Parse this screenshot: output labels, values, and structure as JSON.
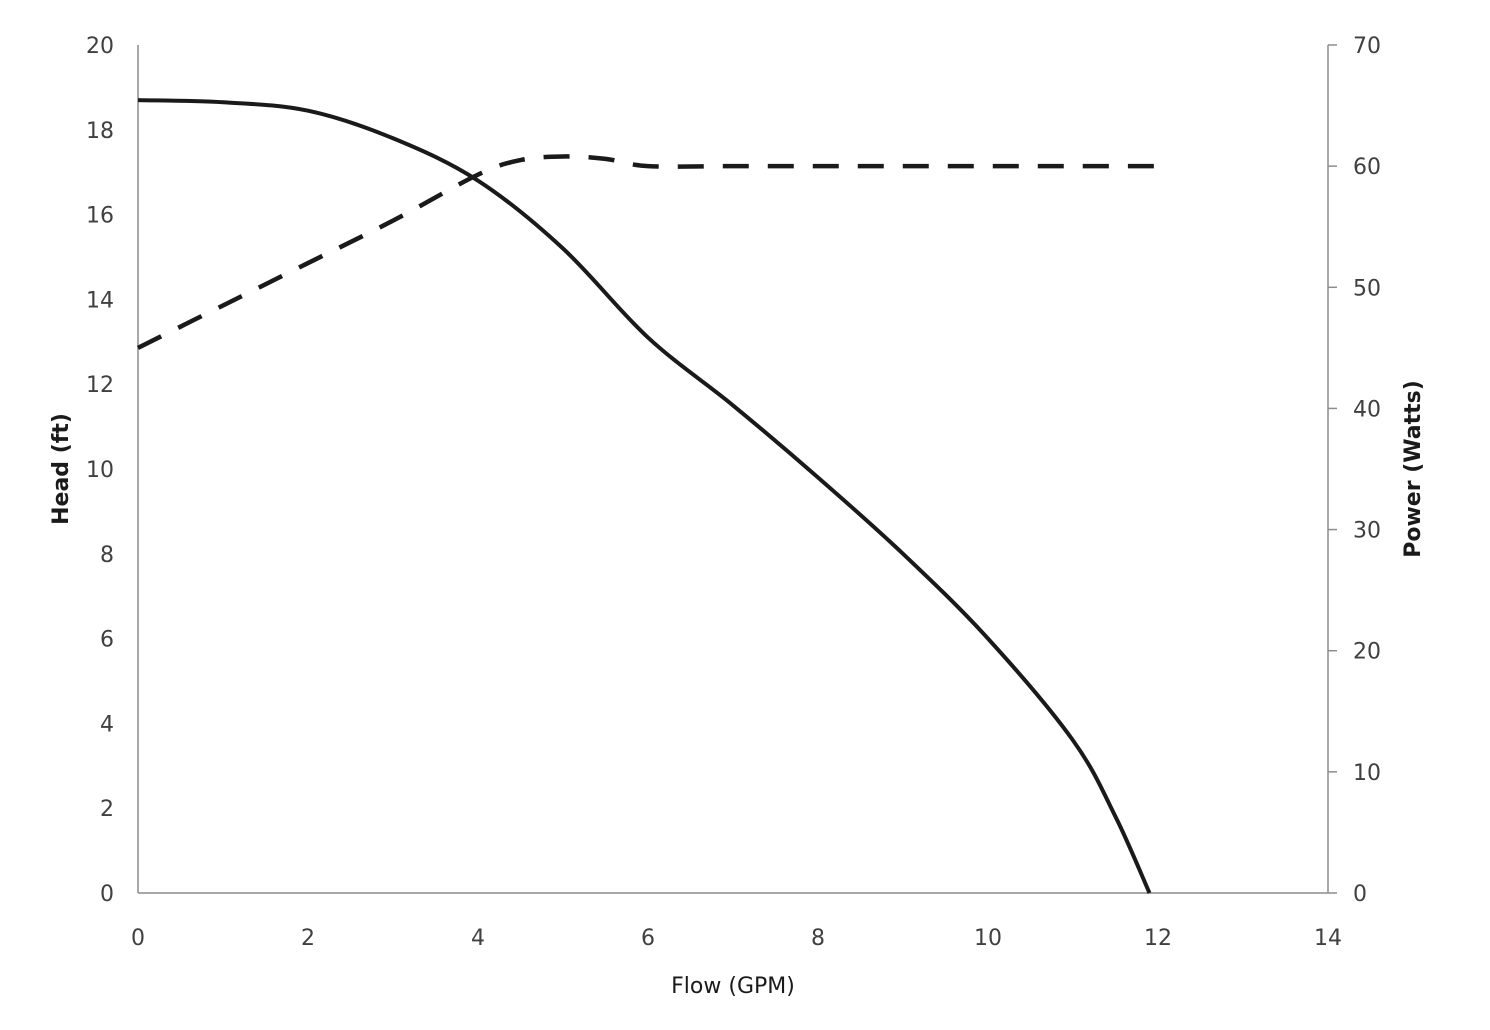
{
  "chart_data": {
    "type": "line",
    "title": "",
    "xlabel": "Flow (GPM)",
    "ylabel": "Head (ft)",
    "y2label": "Power (Watts)",
    "xlim": [
      0,
      14
    ],
    "ylim": [
      0,
      20
    ],
    "y2lim": [
      0,
      70
    ],
    "x_ticks": [
      "0",
      "2",
      "4",
      "6",
      "8",
      "10",
      "12",
      "14"
    ],
    "y_ticks": [
      "0",
      "2",
      "4",
      "6",
      "8",
      "10",
      "12",
      "14",
      "16",
      "18",
      "20"
    ],
    "y2_ticks": [
      "0",
      "10",
      "20",
      "30",
      "40",
      "50",
      "60",
      "70"
    ],
    "grid": false,
    "series": [
      {
        "axis": "left",
        "style": "solid",
        "color": "#1a1a1a",
        "x": [
          0,
          1,
          2,
          3,
          4,
          5,
          6,
          7,
          8,
          9,
          10,
          11,
          11.5,
          11.9
        ],
        "y": [
          18.7,
          18.65,
          18.45,
          17.8,
          16.8,
          15.2,
          13.1,
          11.5,
          9.8,
          8.0,
          6.0,
          3.6,
          1.8,
          0
        ]
      },
      {
        "axis": "right",
        "style": "dashed",
        "color": "#1a1a1a",
        "x": [
          0,
          1,
          2,
          3,
          4,
          4.5,
          5,
          5.5,
          6,
          7,
          8,
          9,
          10,
          11,
          12
        ],
        "y": [
          45,
          48.5,
          52,
          55.5,
          59.3,
          60.5,
          60.8,
          60.6,
          60,
          60,
          60,
          60,
          60,
          60,
          60
        ]
      }
    ]
  }
}
